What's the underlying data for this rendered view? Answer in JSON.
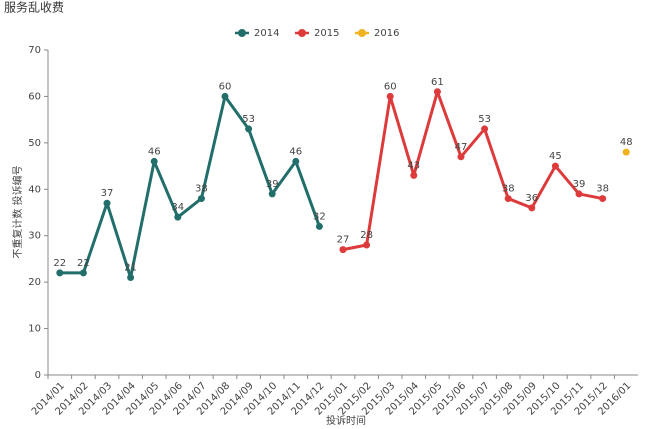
{
  "chart_data": {
    "type": "line",
    "title": "服务乱收费",
    "x_label": "投诉时间",
    "y_label": "不重复计数 投诉编号",
    "categories": [
      "2014/01",
      "2014/02",
      "2014/03",
      "2014/04",
      "2014/05",
      "2014/06",
      "2014/07",
      "2014/08",
      "2014/09",
      "2014/10",
      "2014/11",
      "2014/12",
      "2015/01",
      "2015/02",
      "2015/03",
      "2015/04",
      "2015/05",
      "2015/06",
      "2015/07",
      "2015/08",
      "2015/09",
      "2015/10",
      "2015/11",
      "2015/12",
      "2016/01"
    ],
    "series": [
      {
        "name": "2014",
        "color": "#226e6b",
        "values": [
          22,
          22,
          37,
          21,
          46,
          34,
          38,
          60,
          53,
          39,
          46,
          32,
          null,
          null,
          null,
          null,
          null,
          null,
          null,
          null,
          null,
          null,
          null,
          null,
          null
        ]
      },
      {
        "name": "2015",
        "color": "#dd3b3b",
        "values": [
          null,
          null,
          null,
          null,
          null,
          null,
          null,
          null,
          null,
          null,
          null,
          null,
          27,
          28,
          60,
          43,
          61,
          47,
          53,
          38,
          36,
          45,
          39,
          38,
          null
        ]
      },
      {
        "name": "2016",
        "color": "#f0b31e",
        "values": [
          null,
          null,
          null,
          null,
          null,
          null,
          null,
          null,
          null,
          null,
          null,
          null,
          null,
          null,
          null,
          null,
          null,
          null,
          null,
          null,
          null,
          null,
          null,
          null,
          48
        ]
      }
    ],
    "ylim": [
      0,
      70
    ],
    "yticks": [
      0,
      10,
      20,
      30,
      40,
      50,
      60,
      70
    ],
    "legend": "top"
  }
}
